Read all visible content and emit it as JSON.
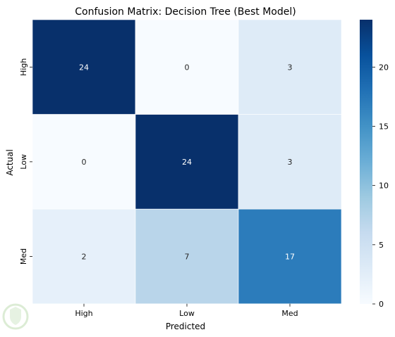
{
  "chart_data": {
    "type": "heatmap",
    "title": "Confusion Matrix: Decision Tree (Best Model)",
    "xlabel": "Predicted",
    "ylabel": "Actual",
    "x_categories": [
      "High",
      "Low",
      "Med"
    ],
    "y_categories": [
      "High",
      "Low",
      "Med"
    ],
    "values": [
      [
        24,
        0,
        3
      ],
      [
        0,
        24,
        3
      ],
      [
        2,
        7,
        17
      ]
    ],
    "colormap": "Blues",
    "vmin": 0,
    "vmax": 24,
    "colorbar_ticks": [
      0,
      5,
      10,
      15,
      20
    ],
    "annotations": true,
    "colors": {
      "low": "#f7fbff",
      "mid": "#6baed6",
      "high": "#08306b",
      "text_dark": "#262626",
      "text_light": "#ffffff"
    }
  }
}
